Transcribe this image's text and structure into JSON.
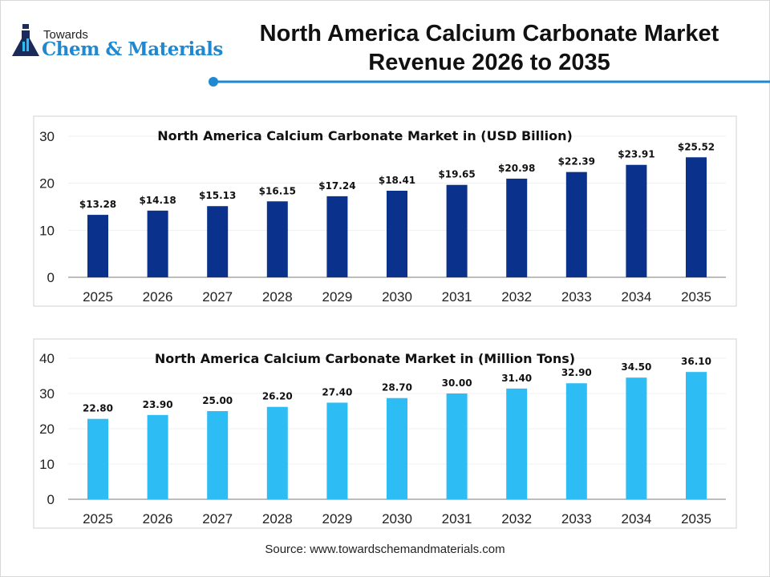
{
  "logo": {
    "small": "Towards",
    "big": "Chem & Materials"
  },
  "title_line1": "North America Calcium Carbonate Market",
  "title_line2": "Revenue 2026 to 2035",
  "source": "Source: www.towardschemandmaterials.com",
  "colors": {
    "accent": "#1e88d0",
    "bar_revenue": "#0a318c",
    "bar_volume": "#2ebcf5"
  },
  "chart_data": [
    {
      "type": "bar",
      "title": "North America Calcium Carbonate Market in (USD Billion)",
      "categories": [
        "2025",
        "2026",
        "2027",
        "2028",
        "2029",
        "2030",
        "2031",
        "2032",
        "2033",
        "2034",
        "2035"
      ],
      "values": [
        13.28,
        14.18,
        15.13,
        16.15,
        17.24,
        18.41,
        19.65,
        20.98,
        22.39,
        23.91,
        25.52
      ],
      "labels": [
        "$13.28",
        "$14.18",
        "$15.13",
        "$16.15",
        "$17.24",
        "$18.41",
        "$19.65",
        "$20.98",
        "$22.39",
        "$23.91",
        "$25.52"
      ],
      "yticks": [
        "0",
        "10",
        "20",
        "30"
      ],
      "ylim": [
        0,
        30
      ],
      "grid": true
    },
    {
      "type": "bar",
      "title": "North America Calcium Carbonate Market in (Million Tons)",
      "categories": [
        "2025",
        "2026",
        "2027",
        "2028",
        "2029",
        "2030",
        "2031",
        "2032",
        "2033",
        "2034",
        "2035"
      ],
      "values": [
        22.8,
        23.9,
        25.0,
        26.2,
        27.4,
        28.7,
        30.0,
        31.4,
        32.9,
        34.5,
        36.1
      ],
      "labels": [
        "22.80",
        "23.90",
        "25.00",
        "26.20",
        "27.40",
        "28.70",
        "30.00",
        "31.40",
        "32.90",
        "34.50",
        "36.10"
      ],
      "yticks": [
        "0",
        "10",
        "20",
        "30",
        "40"
      ],
      "ylim": [
        0,
        40
      ],
      "grid": true
    }
  ]
}
